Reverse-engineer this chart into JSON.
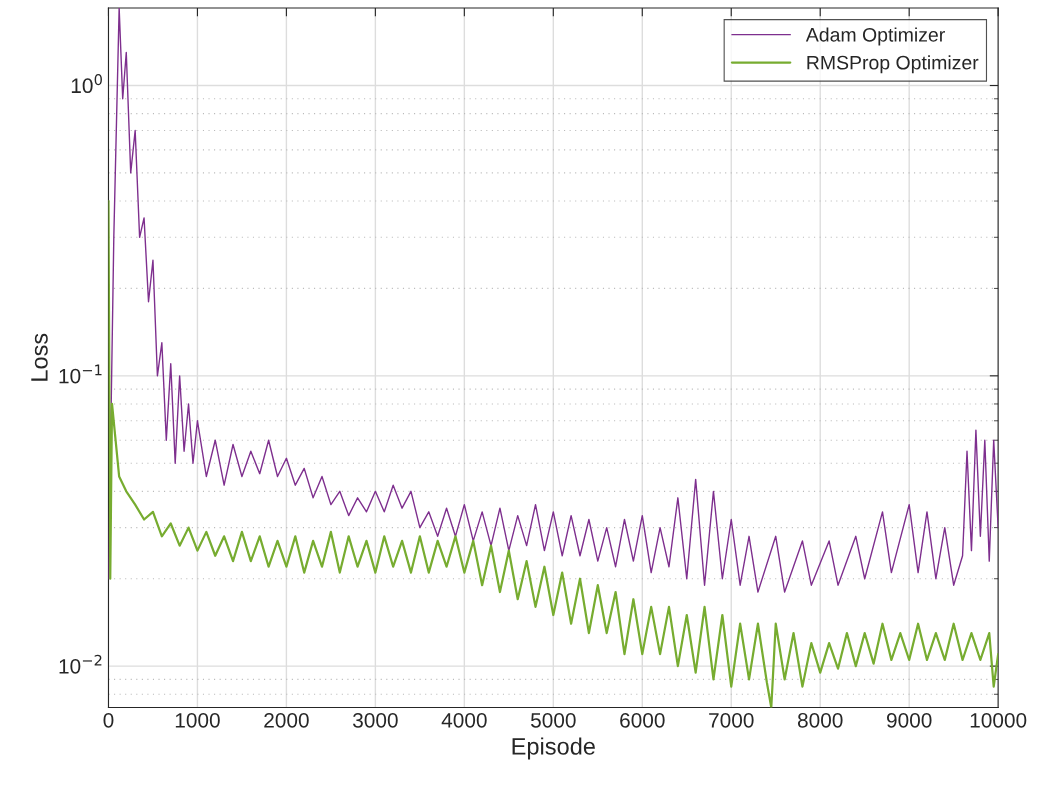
{
  "chart_data": {
    "type": "line",
    "xlabel": "Episode",
    "ylabel": "Loss",
    "log": "y",
    "grid": true,
    "legend": "top right",
    "marker": "none",
    "line_style": "solid",
    "xlim": [
      0,
      10000
    ],
    "xticks": [
      0,
      1000,
      2000,
      3000,
      4000,
      5000,
      6000,
      7000,
      8000,
      9000,
      10000
    ],
    "ylim": [
      0.0072,
      1.85
    ],
    "yticks": [
      {
        "value": 0.01,
        "label": "10$^{−2}$"
      },
      {
        "value": 0.1,
        "label": "10$^{−1}$"
      },
      {
        "value": 1,
        "label": "10$^{0}$"
      }
    ],
    "series": [
      {
        "name": "Adam Optimizer",
        "color": "#7e2f8e",
        "x": [
          0,
          60,
          120,
          160,
          200,
          250,
          300,
          350,
          400,
          450,
          500,
          550,
          600,
          650,
          700,
          750,
          800,
          850,
          900,
          950,
          1000,
          1100,
          1200,
          1300,
          1400,
          1500,
          1600,
          1700,
          1800,
          1900,
          2000,
          2100,
          2200,
          2300,
          2400,
          2500,
          2600,
          2700,
          2800,
          2900,
          3000,
          3100,
          3200,
          3300,
          3400,
          3500,
          3600,
          3700,
          3800,
          3900,
          4000,
          4100,
          4200,
          4300,
          4400,
          4500,
          4600,
          4700,
          4800,
          4900,
          5000,
          5100,
          5200,
          5300,
          5400,
          5500,
          5600,
          5700,
          5800,
          5900,
          6000,
          6100,
          6200,
          6300,
          6400,
          6500,
          6600,
          6700,
          6800,
          6900,
          7000,
          7100,
          7200,
          7300,
          7500,
          7600,
          7800,
          7900,
          8100,
          8200,
          8400,
          8500,
          8700,
          8800,
          9000,
          9100,
          9200,
          9300,
          9400,
          9500,
          9600,
          9650,
          9700,
          9750,
          9800,
          9850,
          9900,
          9950,
          10000
        ],
        "values": [
          0.02,
          0.3,
          1.85,
          0.9,
          1.3,
          0.5,
          0.7,
          0.3,
          0.35,
          0.18,
          0.25,
          0.1,
          0.13,
          0.06,
          0.11,
          0.05,
          0.1,
          0.055,
          0.08,
          0.05,
          0.07,
          0.045,
          0.06,
          0.042,
          0.058,
          0.045,
          0.055,
          0.046,
          0.06,
          0.045,
          0.052,
          0.042,
          0.048,
          0.038,
          0.045,
          0.036,
          0.04,
          0.033,
          0.038,
          0.034,
          0.04,
          0.034,
          0.042,
          0.035,
          0.04,
          0.03,
          0.034,
          0.028,
          0.035,
          0.028,
          0.036,
          0.027,
          0.034,
          0.026,
          0.035,
          0.025,
          0.033,
          0.026,
          0.036,
          0.025,
          0.034,
          0.024,
          0.033,
          0.024,
          0.032,
          0.023,
          0.03,
          0.022,
          0.032,
          0.023,
          0.033,
          0.021,
          0.03,
          0.022,
          0.038,
          0.02,
          0.044,
          0.019,
          0.04,
          0.02,
          0.032,
          0.019,
          0.028,
          0.018,
          0.028,
          0.018,
          0.027,
          0.019,
          0.027,
          0.019,
          0.028,
          0.02,
          0.034,
          0.021,
          0.036,
          0.021,
          0.034,
          0.02,
          0.03,
          0.019,
          0.024,
          0.055,
          0.025,
          0.065,
          0.028,
          0.06,
          0.023,
          0.06,
          0.03
        ]
      },
      {
        "name": "RMSProp Optimizer",
        "color": "#77ac30",
        "x": [
          0,
          20,
          40,
          80,
          120,
          200,
          300,
          400,
          500,
          600,
          700,
          800,
          900,
          1000,
          1100,
          1200,
          1300,
          1400,
          1500,
          1600,
          1700,
          1800,
          1900,
          2000,
          2100,
          2200,
          2300,
          2400,
          2500,
          2600,
          2700,
          2800,
          2900,
          3000,
          3100,
          3200,
          3300,
          3400,
          3500,
          3600,
          3700,
          3800,
          3900,
          4000,
          4100,
          4200,
          4300,
          4400,
          4500,
          4600,
          4700,
          4800,
          4900,
          5000,
          5100,
          5200,
          5300,
          5400,
          5500,
          5600,
          5700,
          5800,
          5900,
          6000,
          6100,
          6200,
          6300,
          6400,
          6500,
          6600,
          6700,
          6800,
          6900,
          7000,
          7100,
          7200,
          7300,
          7400,
          7450,
          7500,
          7600,
          7700,
          7800,
          7900,
          8000,
          8100,
          8200,
          8300,
          8400,
          8500,
          8600,
          8700,
          8800,
          8900,
          9000,
          9100,
          9200,
          9300,
          9400,
          9500,
          9600,
          9700,
          9800,
          9900,
          9950,
          10000
        ],
        "values": [
          0.4,
          0.02,
          0.08,
          0.06,
          0.045,
          0.04,
          0.036,
          0.032,
          0.034,
          0.028,
          0.031,
          0.026,
          0.03,
          0.025,
          0.029,
          0.024,
          0.028,
          0.023,
          0.029,
          0.023,
          0.028,
          0.022,
          0.027,
          0.022,
          0.028,
          0.021,
          0.027,
          0.022,
          0.029,
          0.021,
          0.028,
          0.022,
          0.027,
          0.021,
          0.028,
          0.022,
          0.027,
          0.021,
          0.028,
          0.021,
          0.027,
          0.022,
          0.028,
          0.021,
          0.027,
          0.019,
          0.026,
          0.018,
          0.025,
          0.017,
          0.023,
          0.016,
          0.022,
          0.015,
          0.021,
          0.014,
          0.02,
          0.013,
          0.019,
          0.013,
          0.018,
          0.011,
          0.017,
          0.011,
          0.016,
          0.011,
          0.016,
          0.01,
          0.015,
          0.0095,
          0.016,
          0.009,
          0.015,
          0.0085,
          0.014,
          0.009,
          0.014,
          0.0088,
          0.0072,
          0.014,
          0.009,
          0.013,
          0.0085,
          0.012,
          0.0095,
          0.012,
          0.0098,
          0.013,
          0.01,
          0.013,
          0.0102,
          0.014,
          0.0105,
          0.013,
          0.0105,
          0.014,
          0.0105,
          0.013,
          0.0105,
          0.014,
          0.0105,
          0.013,
          0.0105,
          0.013,
          0.0085,
          0.011
        ]
      }
    ]
  }
}
